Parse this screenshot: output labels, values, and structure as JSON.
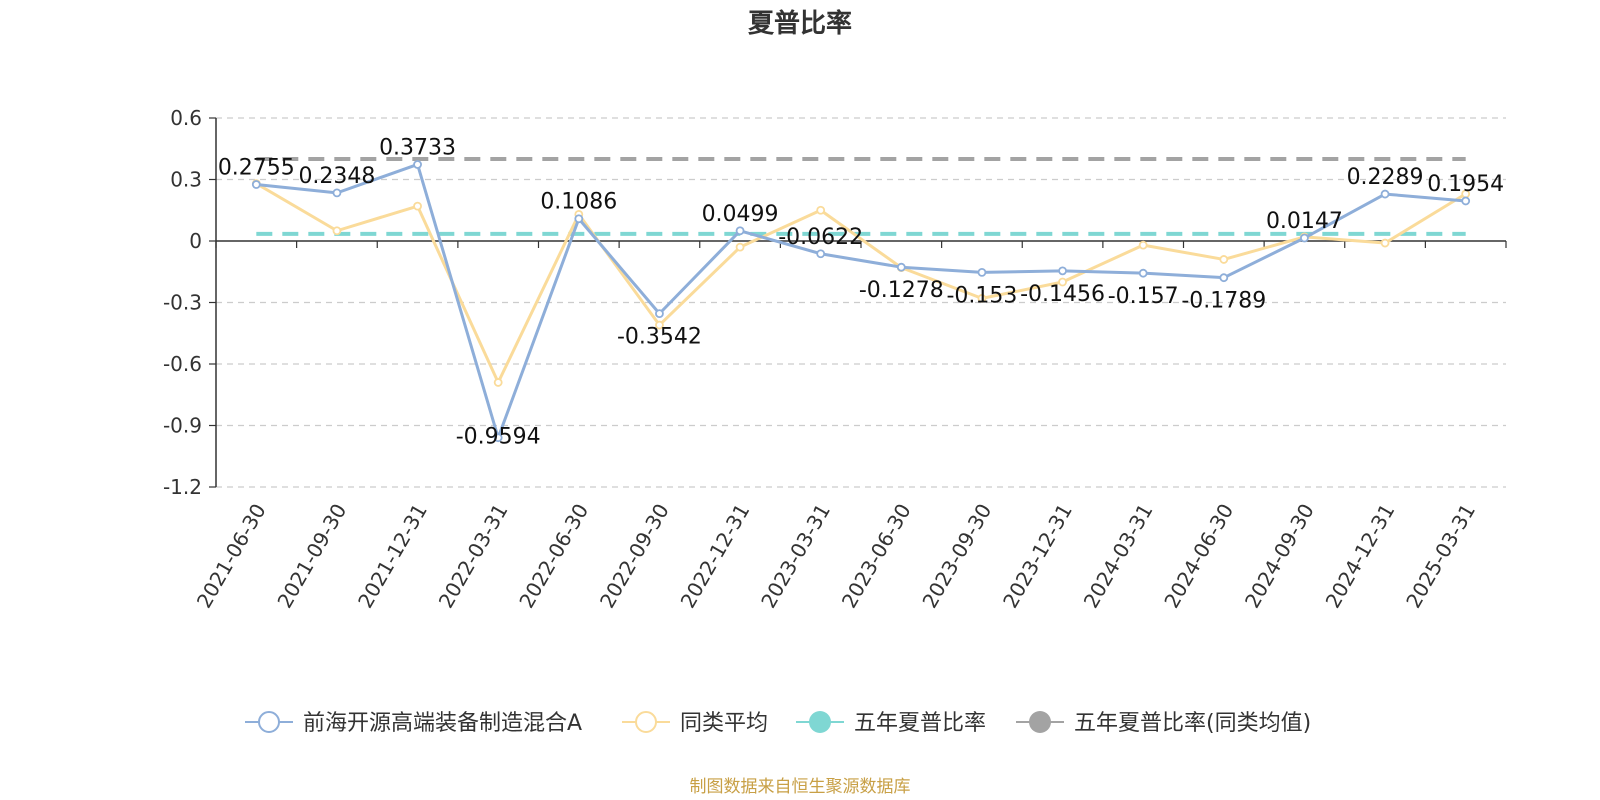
{
  "chart_data": {
    "type": "line",
    "title": "夏普比率",
    "x": [
      "2021-06-30",
      "2021-09-30",
      "2021-12-31",
      "2022-03-31",
      "2022-06-30",
      "2022-09-30",
      "2022-12-31",
      "2023-03-31",
      "2023-06-30",
      "2023-09-30",
      "2023-12-31",
      "2024-03-31",
      "2024-06-30",
      "2024-09-30",
      "2024-12-31",
      "2025-03-31"
    ],
    "y_ticks": [
      "0.6",
      "0.3",
      "0",
      "-0.3",
      "-0.6",
      "-0.9",
      "-1.2"
    ],
    "ylim": [
      -1.2,
      0.6
    ],
    "grid": true,
    "legend_placement": "bottom",
    "series": [
      {
        "name": "前海开源高端装备制造混合A",
        "color": "#8eaed9",
        "values": [
          0.2755,
          0.2348,
          0.3733,
          -0.9594,
          0.1086,
          -0.3542,
          0.0499,
          -0.0622,
          -0.1278,
          -0.153,
          -0.1456,
          -0.157,
          -0.1789,
          0.0147,
          0.2289,
          0.1954
        ],
        "labels": [
          "0.2755",
          "0.2348",
          "0.3733",
          "-0.9594",
          "0.1086",
          "-0.3542",
          "0.0499",
          "-0.0622",
          "-0.1278",
          "-0.153",
          "-0.1456",
          "-0.157",
          "-0.1789",
          "0.0147",
          "0.2289",
          "0.1954"
        ]
      },
      {
        "name": "同类平均",
        "color": "#fadb9a",
        "values": [
          0.28,
          0.05,
          0.17,
          -0.69,
          0.13,
          -0.41,
          -0.03,
          0.15,
          -0.13,
          -0.28,
          -0.2,
          -0.02,
          -0.09,
          0.02,
          -0.01,
          0.23
        ]
      },
      {
        "name": "五年夏普比率",
        "color": "#7fd7d3",
        "value": 0.035
      },
      {
        "name": "五年夏普比率(同类均值)",
        "color": "#a3a3a3",
        "value": 0.4
      }
    ],
    "source": "制图数据来自恒生聚源数据库"
  }
}
